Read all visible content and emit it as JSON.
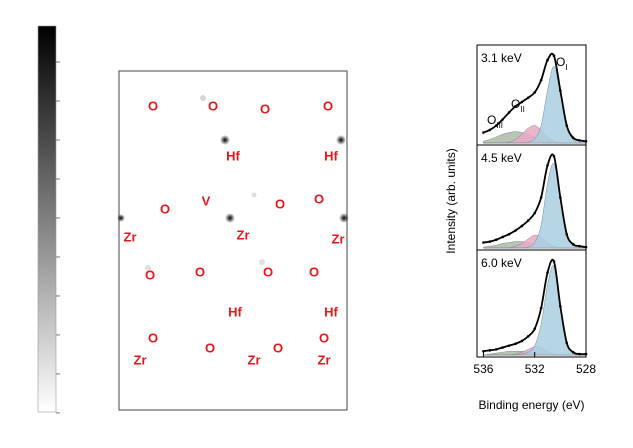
{
  "atom_map": {
    "labels": [
      "O",
      "O",
      "O",
      "O",
      "Hf",
      "Hf",
      "O",
      "V",
      "O",
      "O",
      "Zr",
      "Zr",
      "Zr",
      "O",
      "O",
      "O",
      "O",
      "Hf",
      "Hf",
      "O",
      "O",
      "O",
      "O",
      "Zr",
      "Zr",
      "Zr"
    ]
  },
  "chart_data": {
    "type": "line",
    "xlabel": "Binding energy (eV)",
    "ylabel": "Intensity (arb. units)",
    "xlim": [
      536.5,
      528
    ],
    "xticks": [
      536,
      532,
      528
    ],
    "ylim": [
      0,
      1.1
    ],
    "x": [
      536,
      535.5,
      535,
      534.5,
      534,
      533.5,
      533,
      532.5,
      532,
      531.5,
      531,
      530.5,
      530,
      529.5,
      529,
      528.5,
      528
    ],
    "peak_labels": [
      {
        "text": "O",
        "sub": "I"
      },
      {
        "text": "O",
        "sub": "II"
      },
      {
        "text": "O",
        "sub": "III"
      }
    ],
    "panels": [
      {
        "label": "3.1 keV",
        "series": [
          {
            "color": "#a9bca4",
            "values": [
              0.02,
              0.04,
              0.07,
              0.1,
              0.12,
              0.13,
              0.12,
              0.1,
              0.07,
              0.04,
              0.02,
              0,
              0,
              0,
              0,
              0,
              0
            ]
          },
          {
            "color": "#e9a9c6",
            "values": [
              0,
              0,
              0,
              0,
              0.01,
              0.04,
              0.1,
              0.17,
              0.2,
              0.15,
              0.07,
              0.02,
              0,
              0,
              0,
              0,
              0
            ]
          },
          {
            "color": "#a9cfe2",
            "values": [
              0,
              0,
              0,
              0,
              0,
              0,
              0,
              0.01,
              0.05,
              0.2,
              0.6,
              0.88,
              0.55,
              0.18,
              0.04,
              0.01,
              0
            ]
          },
          {
            "color": "#000000",
            "values": [
              0.12,
              0.15,
              0.2,
              0.27,
              0.35,
              0.42,
              0.47,
              0.52,
              0.58,
              0.72,
              0.95,
              1.0,
              0.6,
              0.2,
              0.06,
              0.03,
              0.02
            ]
          }
        ]
      },
      {
        "label": "4.5 keV",
        "series": [
          {
            "color": "#a9bca4",
            "values": [
              0.01,
              0.02,
              0.03,
              0.05,
              0.06,
              0.07,
              0.07,
              0.06,
              0.04,
              0.02,
              0.01,
              0,
              0,
              0,
              0,
              0,
              0
            ]
          },
          {
            "color": "#e9a9c6",
            "values": [
              0,
              0,
              0,
              0,
              0,
              0.02,
              0.05,
              0.1,
              0.14,
              0.12,
              0.06,
              0.02,
              0,
              0,
              0,
              0,
              0
            ]
          },
          {
            "color": "#a9cfe2",
            "values": [
              0,
              0,
              0,
              0,
              0,
              0,
              0,
              0.01,
              0.06,
              0.25,
              0.7,
              0.92,
              0.52,
              0.14,
              0.03,
              0,
              0
            ]
          },
          {
            "color": "#000000",
            "values": [
              0.06,
              0.07,
              0.09,
              0.12,
              0.15,
              0.19,
              0.24,
              0.3,
              0.38,
              0.55,
              0.9,
              1.0,
              0.55,
              0.15,
              0.04,
              0.02,
              0.01
            ]
          }
        ]
      },
      {
        "label": "6.0 keV",
        "series": [
          {
            "color": "#a9bca4",
            "values": [
              0,
              0.01,
              0.02,
              0.03,
              0.04,
              0.04,
              0.04,
              0.03,
              0.02,
              0.01,
              0,
              0,
              0,
              0,
              0,
              0,
              0
            ]
          },
          {
            "color": "#e9a9c6",
            "values": [
              0,
              0,
              0,
              0,
              0,
              0.01,
              0.03,
              0.06,
              0.09,
              0.08,
              0.04,
              0.01,
              0,
              0,
              0,
              0,
              0
            ]
          },
          {
            "color": "#a9cfe2",
            "values": [
              0,
              0,
              0,
              0,
              0,
              0,
              0.01,
              0.03,
              0.1,
              0.33,
              0.75,
              0.95,
              0.5,
              0.12,
              0.02,
              0,
              0
            ]
          },
          {
            "color": "#000000",
            "values": [
              0.04,
              0.05,
              0.06,
              0.08,
              0.1,
              0.12,
              0.15,
              0.2,
              0.28,
              0.5,
              0.88,
              1.0,
              0.52,
              0.13,
              0.03,
              0.01,
              0.01
            ]
          }
        ]
      }
    ]
  }
}
